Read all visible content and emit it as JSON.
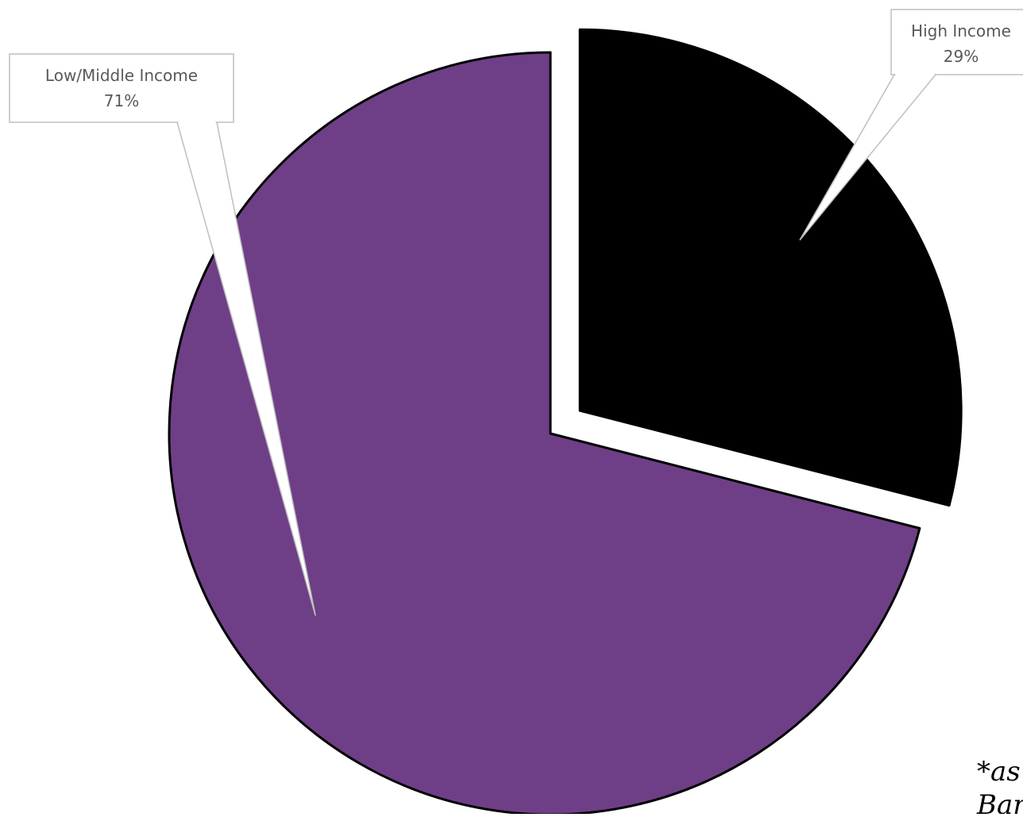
{
  "chart_data": {
    "type": "pie",
    "slices": [
      {
        "label": "High Income",
        "value": 29,
        "value_label": "29%",
        "color": "#000000",
        "exploded": true
      },
      {
        "label": "Low/Middle Income",
        "value": 71,
        "value_label": "71%",
        "color": "#6E3F86",
        "exploded": false
      }
    ],
    "start_angle_deg": 0,
    "direction": "clockwise",
    "label_style": "callout",
    "legend": "none"
  },
  "footnote": {
    "line1": "*as",
    "line2": "Ban"
  },
  "colors": {
    "outline": "#000000",
    "callout_border": "#BFBFBF",
    "callout_text": "#595959"
  }
}
